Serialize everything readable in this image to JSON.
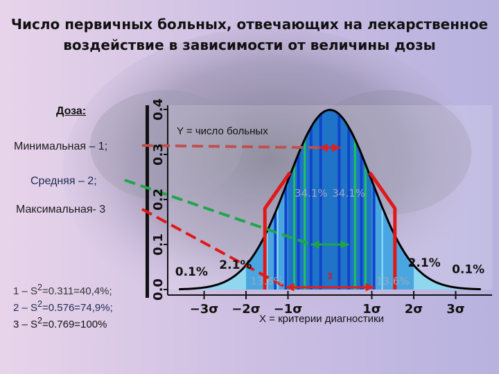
{
  "title_line1": "Число первичных больных, отвечающих на лекарственное",
  "title_line2": "воздействие в зависимости от величины дозы",
  "dose": {
    "header": "Доза:",
    "min": "Минимальная – 1;",
    "mid": "Средняя – 2;",
    "max": "Максимальная- 3"
  },
  "stats": [
    {
      "label": "1 – S",
      "sup": "2",
      "value": "=0.311=40,4%;"
    },
    {
      "label": "2 – S",
      "sup": "2",
      "value": "=0.576=74,9%;"
    },
    {
      "label": "3 – S",
      "sup": "2",
      "value": "=0.769=100%"
    }
  ],
  "y_axis_label": "Y = число больных",
  "x_axis_label": "X = критерии диагностики",
  "colors": {
    "curve_fill_light": "#8fd7ee",
    "curve_fill_mid": "#4aa6e0",
    "curve_fill_dark": "#1f74c8",
    "band_blue": "#1144cc",
    "band_green": "#22c060",
    "dose1": "#c0504d",
    "dose2": "#1fa64a",
    "dose3": "#e01818",
    "arrow_red": "#e02020",
    "background": "#cdbfe3"
  },
  "chart_data": {
    "type": "area",
    "distribution": "normal",
    "x_tick_labels": [
      "−3σ",
      "−2σ",
      "−1σ",
      "1σ",
      "2σ",
      "3σ"
    ],
    "x_ticks": [
      -3,
      -2,
      -1,
      1,
      2,
      3
    ],
    "y_tick_labels": [
      "0.0",
      "0.1",
      "0.2",
      "0.3",
      "0.4"
    ],
    "y_ticks": [
      0.0,
      0.1,
      0.2,
      0.3,
      0.4
    ],
    "xlim": [
      -3.6,
      3.6
    ],
    "ylim": [
      0,
      0.42
    ],
    "region_labels": [
      {
        "text": "0.1%",
        "x": -3.3,
        "y": 0.025
      },
      {
        "text": "2.1%",
        "x": -2.25,
        "y": 0.04
      },
      {
        "text": "13.6%",
        "x": -1.5,
        "y": 0.005,
        "muted": true
      },
      {
        "text": "34.1%",
        "x": -0.45,
        "y": 0.2,
        "muted": true
      },
      {
        "text": "34.1%",
        "x": 0.45,
        "y": 0.2,
        "muted": true
      },
      {
        "text": "13.6%",
        "x": 1.5,
        "y": 0.005,
        "muted": true
      },
      {
        "text": "2.1%",
        "x": 2.25,
        "y": 0.045
      },
      {
        "text": "0.1%",
        "x": 3.3,
        "y": 0.03
      }
    ],
    "dose_markers": [
      {
        "dose": "1",
        "label": "",
        "half_width": 0.25,
        "y": 0.315
      },
      {
        "dose": "2",
        "label": "",
        "half_width": 0.45,
        "y": 0.1
      },
      {
        "dose": "3",
        "label": "3",
        "half_width": 1.05,
        "y": 0.005
      }
    ]
  }
}
